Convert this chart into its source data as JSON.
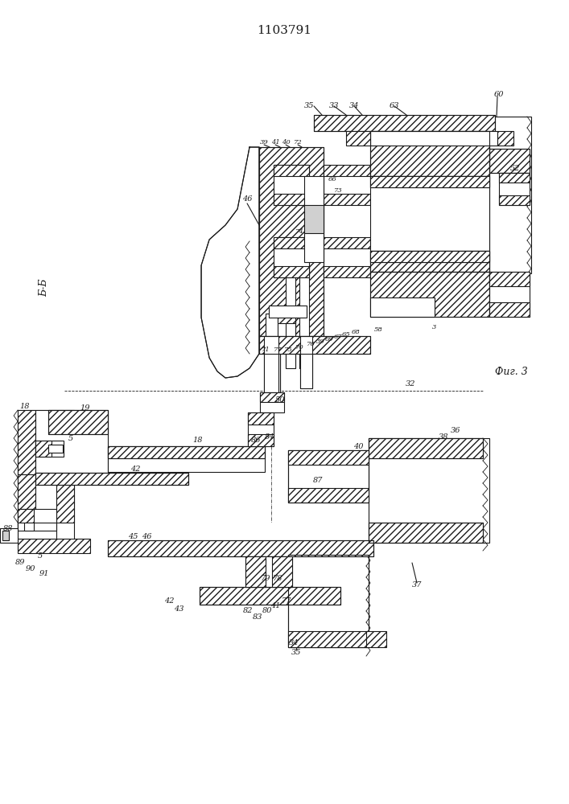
{
  "title": "1103791",
  "bg_color": "#ffffff",
  "line_color": "#1a1a1a",
  "fig_label": "Фиг. 3",
  "section_label": "Б-Б"
}
